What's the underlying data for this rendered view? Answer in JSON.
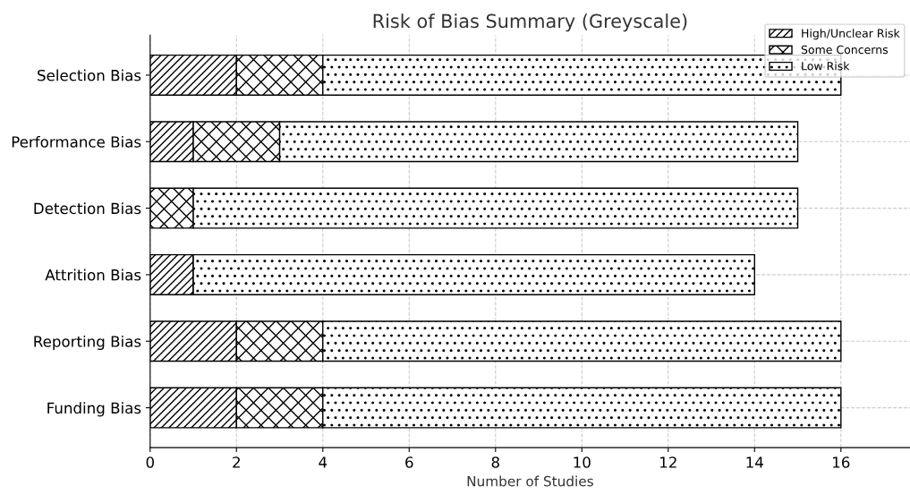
{
  "chart_data": {
    "type": "bar",
    "orientation": "horizontal",
    "stacked": true,
    "title": "Risk of Bias Summary (Greyscale)",
    "xlabel": "Number of Studies",
    "categories": [
      "Selection Bias",
      "Performance Bias",
      "Detection Bias",
      "Attrition Bias",
      "Reporting Bias",
      "Funding Bias"
    ],
    "series": [
      {
        "name": "High/Unclear Risk",
        "color": "#000000",
        "values": [
          2,
          1,
          0,
          1,
          2,
          2
        ]
      },
      {
        "name": "Some Concerns",
        "color": "#000000",
        "values": [
          2,
          2,
          1,
          0,
          2,
          2
        ]
      },
      {
        "name": "Low Risk",
        "color": "#000000",
        "values": [
          12,
          12,
          14,
          13,
          12,
          12
        ]
      }
    ],
    "xlim": [
      0,
      17.6
    ],
    "xticks": [
      0,
      2,
      4,
      6,
      8,
      10,
      12,
      14,
      16
    ],
    "grid": true,
    "legend": "top right"
  }
}
